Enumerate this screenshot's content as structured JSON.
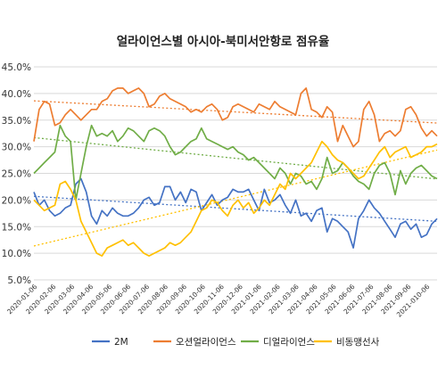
{
  "chart_data": {
    "type": "line",
    "title": "얼라이언스별 아시아-북미서안항로 점유율",
    "xlabel": "",
    "ylabel": "",
    "ylim": [
      0.05,
      0.45
    ],
    "y_ticks": [
      "45.0%",
      "40.0%",
      "35.0%",
      "30.0%",
      "25.0%",
      "20.0%",
      "15.0%",
      "10.0%",
      "5.0%"
    ],
    "x_tick_labels": [
      "2020-01-06",
      "2020-02-06",
      "2020-03-06",
      "2020-04-06",
      "2020-05-06",
      "2020-06-06",
      "2020-07-06",
      "2020-08-06",
      "2020-09-06",
      "2020-10-06",
      "2020-11-06",
      "2020-12-06",
      "2021-01-06",
      "2021-02-06",
      "2021-03-06",
      "2021-04-06",
      "2021-05-06",
      "2021-06-06",
      "2021-07-06",
      "2021-08-06",
      "2021-09-06",
      "2021-010-06"
    ],
    "grid": "horizontal",
    "legend_position": "bottom",
    "trendlines": "dotted linear trend per series",
    "series": [
      {
        "name": "2M",
        "color": "#4472C4",
        "values": [
          0.215,
          0.19,
          0.2,
          0.18,
          0.17,
          0.175,
          0.185,
          0.19,
          0.23,
          0.24,
          0.215,
          0.17,
          0.155,
          0.18,
          0.17,
          0.185,
          0.175,
          0.17,
          0.17,
          0.175,
          0.185,
          0.2,
          0.205,
          0.19,
          0.195,
          0.225,
          0.225,
          0.2,
          0.215,
          0.195,
          0.22,
          0.215,
          0.18,
          0.195,
          0.21,
          0.19,
          0.2,
          0.205,
          0.22,
          0.215,
          0.215,
          0.22,
          0.2,
          0.18,
          0.22,
          0.195,
          0.2,
          0.21,
          0.19,
          0.175,
          0.2,
          0.17,
          0.175,
          0.16,
          0.18,
          0.185,
          0.14,
          0.165,
          0.16,
          0.15,
          0.14,
          0.11,
          0.165,
          0.18,
          0.2,
          0.185,
          0.175,
          0.16,
          0.145,
          0.13,
          0.155,
          0.16,
          0.145,
          0.155,
          0.13,
          0.135,
          0.155,
          0.165
        ]
      },
      {
        "name": "오션얼라이언스",
        "color": "#ED7D31",
        "values": [
          0.31,
          0.37,
          0.385,
          0.38,
          0.34,
          0.345,
          0.36,
          0.37,
          0.36,
          0.35,
          0.36,
          0.37,
          0.37,
          0.385,
          0.39,
          0.405,
          0.41,
          0.41,
          0.4,
          0.405,
          0.41,
          0.4,
          0.375,
          0.38,
          0.395,
          0.4,
          0.39,
          0.385,
          0.38,
          0.375,
          0.365,
          0.37,
          0.365,
          0.375,
          0.38,
          0.37,
          0.35,
          0.355,
          0.375,
          0.38,
          0.375,
          0.37,
          0.365,
          0.38,
          0.375,
          0.37,
          0.385,
          0.375,
          0.37,
          0.365,
          0.36,
          0.4,
          0.41,
          0.37,
          0.365,
          0.355,
          0.375,
          0.365,
          0.31,
          0.34,
          0.32,
          0.3,
          0.31,
          0.37,
          0.385,
          0.36,
          0.31,
          0.325,
          0.33,
          0.32,
          0.33,
          0.37,
          0.375,
          0.36,
          0.335,
          0.32,
          0.33,
          0.32
        ]
      },
      {
        "name": "디얼라이언스",
        "color": "#70AD47",
        "values": [
          0.25,
          0.26,
          0.27,
          0.28,
          0.29,
          0.34,
          0.32,
          0.31,
          0.2,
          0.25,
          0.3,
          0.34,
          0.32,
          0.325,
          0.32,
          0.33,
          0.31,
          0.32,
          0.335,
          0.33,
          0.32,
          0.31,
          0.33,
          0.335,
          0.33,
          0.32,
          0.3,
          0.285,
          0.29,
          0.3,
          0.31,
          0.315,
          0.335,
          0.315,
          0.31,
          0.305,
          0.3,
          0.295,
          0.3,
          0.29,
          0.285,
          0.275,
          0.28,
          0.27,
          0.26,
          0.25,
          0.24,
          0.26,
          0.25,
          0.23,
          0.25,
          0.245,
          0.23,
          0.235,
          0.22,
          0.24,
          0.28,
          0.25,
          0.255,
          0.27,
          0.26,
          0.245,
          0.235,
          0.23,
          0.22,
          0.25,
          0.265,
          0.27,
          0.25,
          0.21,
          0.255,
          0.23,
          0.25,
          0.26,
          0.265,
          0.255,
          0.245,
          0.24
        ]
      },
      {
        "name": "비동맹선사",
        "color": "#FFC000",
        "values": [
          0.2,
          0.19,
          0.18,
          0.185,
          0.19,
          0.23,
          0.235,
          0.22,
          0.2,
          0.16,
          0.14,
          0.12,
          0.1,
          0.095,
          0.11,
          0.115,
          0.12,
          0.125,
          0.115,
          0.12,
          0.11,
          0.1,
          0.095,
          0.1,
          0.105,
          0.11,
          0.12,
          0.115,
          0.12,
          0.13,
          0.14,
          0.16,
          0.18,
          0.185,
          0.2,
          0.195,
          0.18,
          0.17,
          0.19,
          0.2,
          0.185,
          0.195,
          0.175,
          0.185,
          0.2,
          0.19,
          0.21,
          0.23,
          0.22,
          0.25,
          0.24,
          0.25,
          0.26,
          0.27,
          0.29,
          0.31,
          0.3,
          0.285,
          0.275,
          0.27,
          0.26,
          0.25,
          0.24,
          0.245,
          0.26,
          0.275,
          0.29,
          0.3,
          0.28,
          0.29,
          0.295,
          0.3,
          0.28,
          0.285,
          0.29,
          0.3,
          0.3,
          0.305
        ]
      }
    ]
  }
}
